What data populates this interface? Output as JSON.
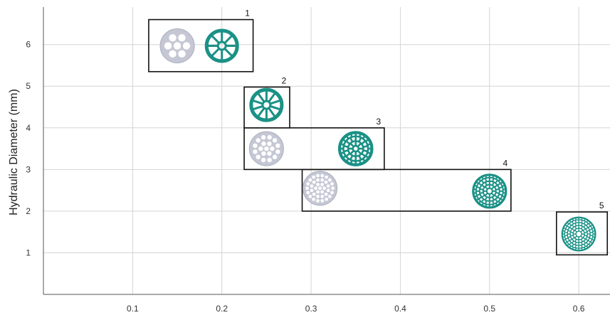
{
  "chart_data": {
    "type": "scatter",
    "title": "",
    "xlabel": "",
    "ylabel": "Hydraulic Diameter (mm)",
    "xlim": [
      0,
      0.635
    ],
    "ylim": [
      0,
      6.9
    ],
    "x_ticks": [
      "0.1",
      "0.2",
      "0.3",
      "0.4",
      "0.5",
      "0.6"
    ],
    "y_ticks": [
      "1",
      "2",
      "3",
      "4",
      "5",
      "6"
    ],
    "grid": true,
    "colors": {
      "grey_design": "#c5c8d4",
      "teal_design": "#1a9186",
      "box": "#111111",
      "grid": "#d4d4d4"
    },
    "groups": [
      {
        "label": "1",
        "x_range": [
          0.118,
          0.235
        ],
        "y_range": [
          5.35,
          6.6
        ]
      },
      {
        "label": "2",
        "x_range": [
          0.225,
          0.276
        ],
        "y_range": [
          4.0,
          4.98
        ]
      },
      {
        "label": "3",
        "x_range": [
          0.225,
          0.382
        ],
        "y_range": [
          3.0,
          4.0
        ]
      },
      {
        "label": "4",
        "x_range": [
          0.29,
          0.524
        ],
        "y_range": [
          2.0,
          3.0
        ]
      },
      {
        "label": "5",
        "x_range": [
          0.575,
          0.632
        ],
        "y_range": [
          0.95,
          1.98
        ]
      }
    ],
    "points": [
      {
        "name": "grey-6-hole-design",
        "group": "1",
        "x": 0.15,
        "y": 5.97,
        "design": "perforated-6",
        "color": "grey_design"
      },
      {
        "name": "teal-8-spoke-design",
        "group": "1",
        "x": 0.2,
        "y": 5.97,
        "design": "spoked-8",
        "color": "teal_design"
      },
      {
        "name": "teal-10-spoke-design",
        "group": "2",
        "x": 0.25,
        "y": 4.55,
        "design": "spoked-10",
        "color": "teal_design"
      },
      {
        "name": "grey-multi-hole-design",
        "group": "3",
        "x": 0.25,
        "y": 3.5,
        "design": "perforated-19",
        "color": "grey_design"
      },
      {
        "name": "teal-2-ring-honeycomb-design",
        "group": "3",
        "x": 0.35,
        "y": 3.5,
        "design": "rings-2",
        "color": "teal_design"
      },
      {
        "name": "grey-many-hole-design",
        "group": "4",
        "x": 0.31,
        "y": 2.55,
        "design": "perforated-37",
        "color": "grey_design"
      },
      {
        "name": "teal-3-ring-honeycomb-design",
        "group": "4",
        "x": 0.5,
        "y": 2.48,
        "design": "rings-3",
        "color": "teal_design"
      },
      {
        "name": "teal-4-ring-honeycomb-design",
        "group": "5",
        "x": 0.6,
        "y": 1.45,
        "design": "rings-4",
        "color": "teal_design"
      }
    ]
  }
}
